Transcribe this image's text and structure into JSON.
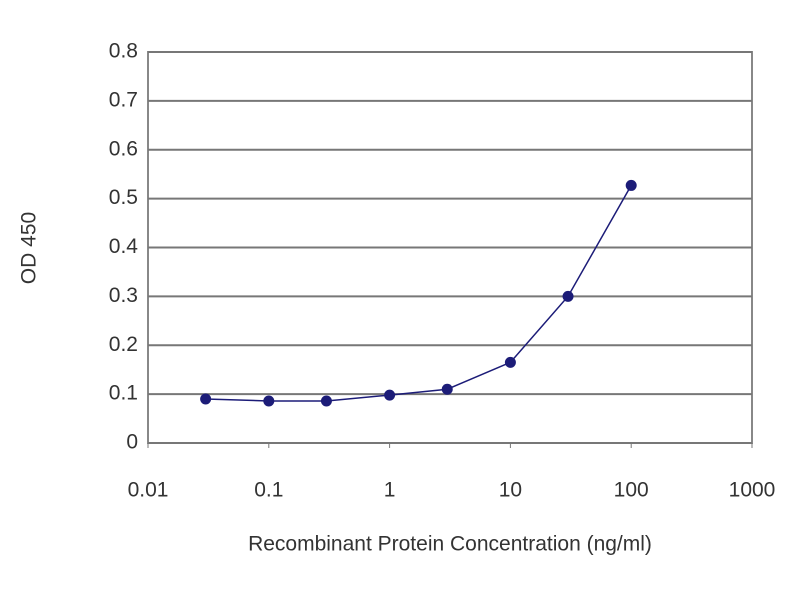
{
  "chart_data": {
    "type": "line",
    "x_label": "Recombinant Protein Concentration (ng/ml)",
    "y_label": "OD 450",
    "x": [
      0.03,
      0.1,
      0.3,
      1,
      3,
      10,
      30,
      100
    ],
    "values": [
      0.09,
      0.086,
      0.086,
      0.098,
      0.11,
      0.165,
      0.3,
      0.527
    ],
    "color": "#1c1c78",
    "x_log": true,
    "xlim": [
      0.01,
      1000
    ],
    "xticks": [
      0.01,
      0.1,
      1,
      10,
      100,
      1000
    ],
    "ylim": [
      0,
      0.8
    ],
    "yticks": [
      0,
      0.1,
      0.2,
      0.3,
      0.4,
      0.5,
      0.6,
      0.7,
      0.8
    ],
    "grid": true
  }
}
